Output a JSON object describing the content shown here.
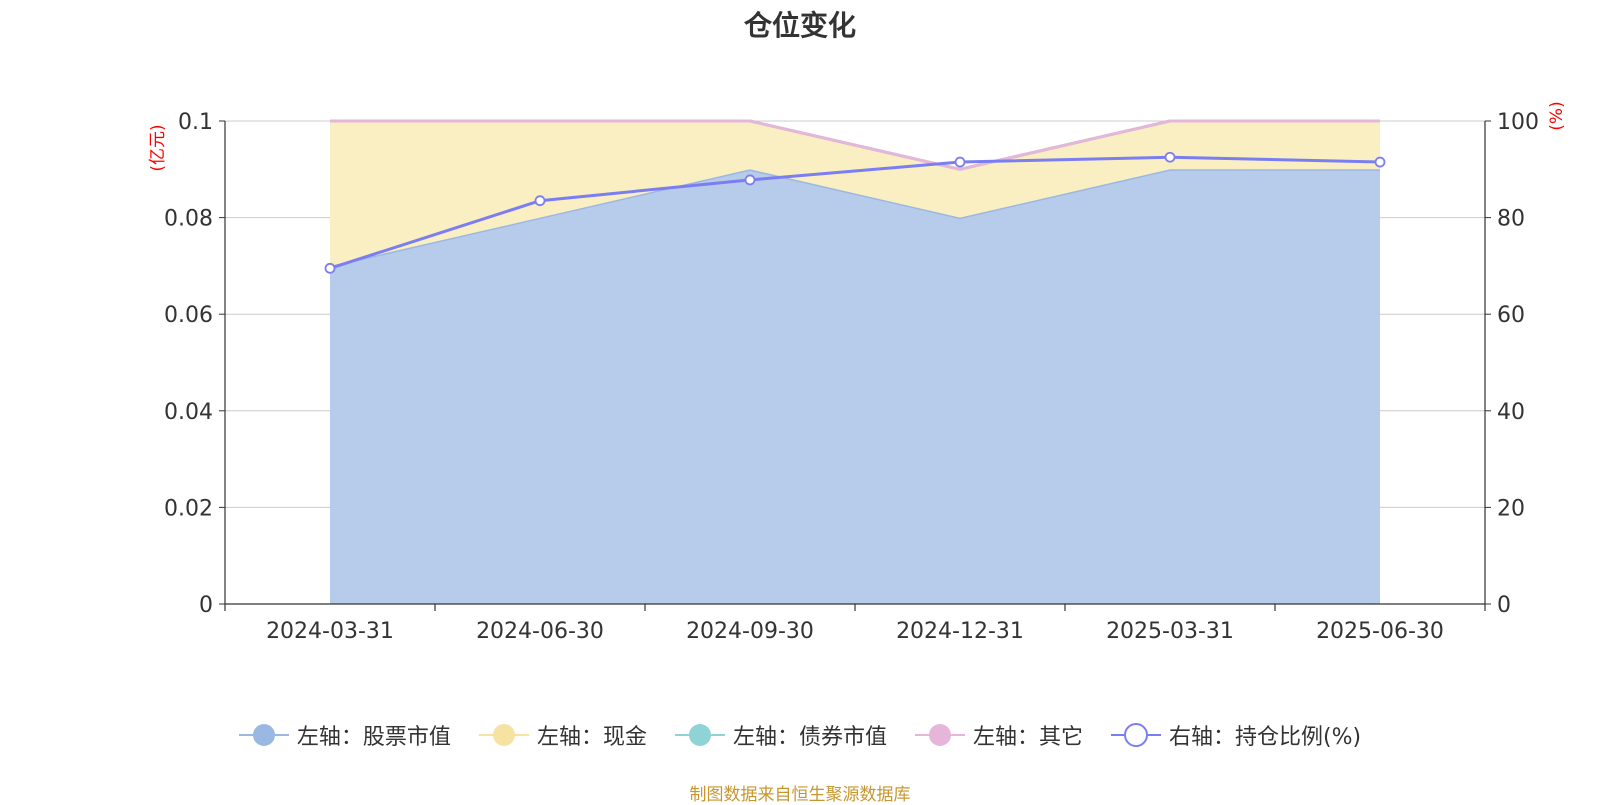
{
  "chart_data": {
    "type": "area",
    "title": "仓位变化",
    "categories": [
      "2024-03-31",
      "2024-06-30",
      "2024-09-30",
      "2024-12-31",
      "2025-03-31",
      "2025-06-30"
    ],
    "left_axis": {
      "label": "(亿元)",
      "ylim": [
        0,
        0.1
      ],
      "ticks": [
        "0",
        "0.02",
        "0.04",
        "0.06",
        "0.08",
        "0.1"
      ],
      "tick_values": [
        0,
        0.02,
        0.04,
        0.06,
        0.08,
        0.1
      ]
    },
    "right_axis": {
      "label": "(%)",
      "ylim": [
        0,
        100
      ],
      "ticks": [
        "0",
        "20",
        "40",
        "60",
        "80",
        "100"
      ],
      "tick_values": [
        0,
        20,
        40,
        60,
        80,
        100
      ]
    },
    "series": [
      {
        "name": "左轴：股票市值",
        "axis": "left",
        "kind": "stacked-area",
        "values": [
          0.07,
          0.08,
          0.09,
          0.08,
          0.09,
          0.09
        ],
        "color": "#9bb8e3",
        "fill": "#b7cbea"
      },
      {
        "name": "左轴：现金",
        "axis": "left",
        "kind": "stacked-area",
        "values": [
          0.03,
          0.02,
          0.01,
          0.01,
          0.01,
          0.01
        ],
        "color": "#f6e3a1",
        "fill": "#faefc3"
      },
      {
        "name": "左轴：债券市值",
        "axis": "left",
        "kind": "stacked-area",
        "values": [
          0,
          0,
          0,
          0,
          0,
          0
        ],
        "color": "#8fd3d6",
        "fill": "#bfe6e8"
      },
      {
        "name": "左轴：其它",
        "axis": "left",
        "kind": "stacked-area",
        "values": [
          0,
          0,
          0,
          0,
          0,
          0
        ],
        "color": "#e6b6da",
        "fill": "#f2d6eb"
      },
      {
        "name": "右轴：持仓比例(%)",
        "axis": "right",
        "kind": "line",
        "values": [
          69.5,
          83.5,
          87.8,
          91.5,
          92.5,
          91.5
        ],
        "color": "#7b7ef0"
      }
    ],
    "grid": true,
    "legend_position": "bottom"
  },
  "legend_items": [
    {
      "label": "左轴：股票市值",
      "color": "#9bb8e3",
      "symbol": "filled-circle"
    },
    {
      "label": "左轴：现金",
      "color": "#f6e3a1",
      "symbol": "filled-circle"
    },
    {
      "label": "左轴：债券市值",
      "color": "#8fd3d6",
      "symbol": "filled-circle"
    },
    {
      "label": "左轴：其它",
      "color": "#e6b6da",
      "symbol": "filled-circle"
    },
    {
      "label": "右轴：持仓比例(%)",
      "color": "#7b7ef0",
      "symbol": "hollow-circle"
    }
  ],
  "source_note": "制图数据来自恒生聚源数据库",
  "colors": {
    "grid": "#cccccc",
    "axis": "#333333",
    "axis_label": "#ff0000",
    "source_note": "#c8962f"
  }
}
